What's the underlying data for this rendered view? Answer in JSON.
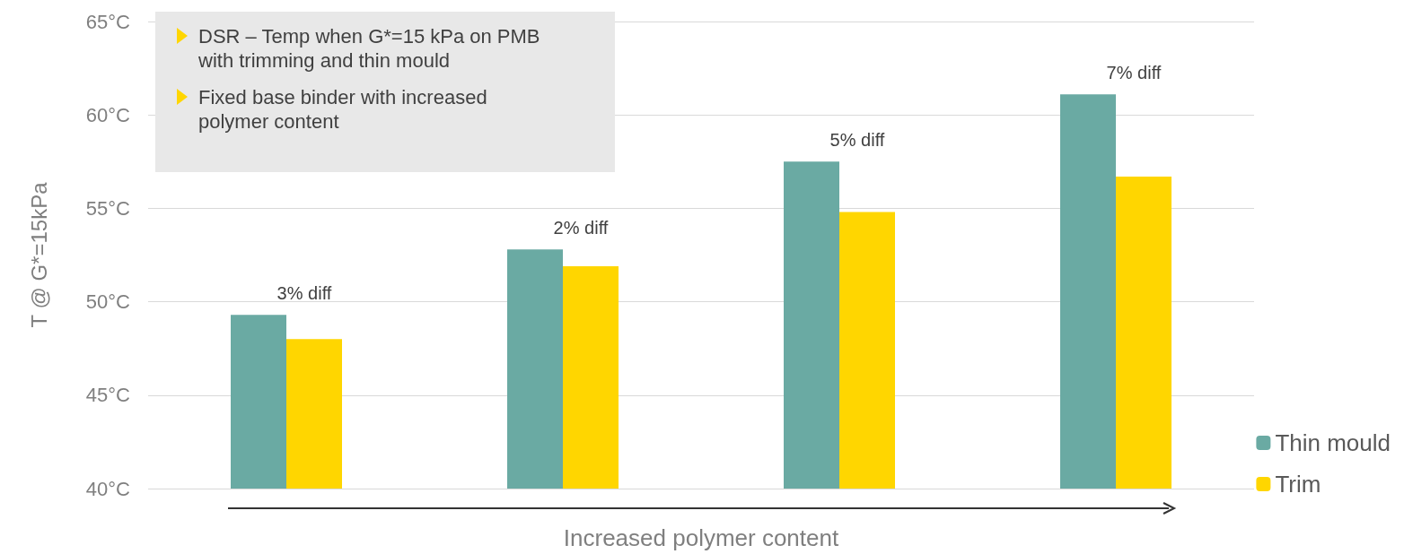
{
  "chart_data": {
    "type": "bar",
    "xlabel": "Increased polymer content",
    "ylabel": "T @ G*=15kPa",
    "categories": [
      null,
      null,
      null,
      null
    ],
    "series": [
      {
        "name": "Thin mould",
        "color": "#6aaaa3",
        "values": [
          49.3,
          52.8,
          57.5,
          61.1
        ]
      },
      {
        "name": "Trim",
        "color": "#ffd600",
        "values": [
          48.0,
          51.9,
          54.8,
          56.7
        ]
      }
    ],
    "ylim": [
      40,
      65
    ],
    "yticks": [
      {
        "value": 40,
        "label": "40°C"
      },
      {
        "value": 45,
        "label": "45°C"
      },
      {
        "value": 50,
        "label": "50°C"
      },
      {
        "value": 55,
        "label": "55°C"
      },
      {
        "value": 60,
        "label": "60°C"
      },
      {
        "value": 65,
        "label": "65°C"
      }
    ],
    "grid": "y",
    "legend": "bottom right",
    "annotations": [
      "DSR – Temp when G*=15 kPa on PMB with trimming and thin mould",
      "Fixed base binder with increased polymer content",
      "3% diff",
      "2% diff",
      "5% diff",
      "7% diff"
    ]
  }
}
